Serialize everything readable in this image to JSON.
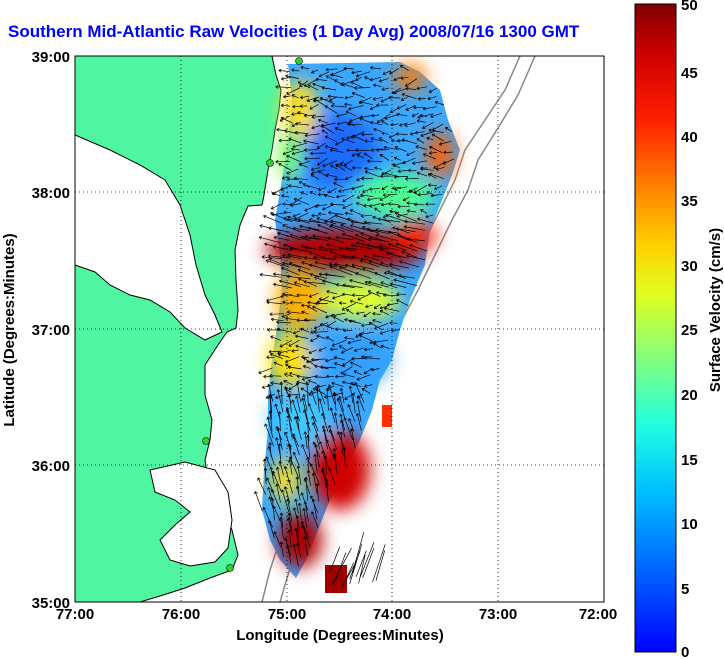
{
  "title": "Southern Mid-Atlantic Raw Velocities (1 Day Avg) 2008/07/16 1300 GMT",
  "x_axis": {
    "label": "Longitude (Degrees:Minutes)",
    "ticks": [
      "77:00",
      "76:00",
      "75:00",
      "74:00",
      "73:00",
      "72:00"
    ]
  },
  "y_axis": {
    "label": "Latitude (Degrees:Minutes)",
    "ticks": [
      "39:00",
      "38:00",
      "37:00",
      "36:00",
      "35:00"
    ]
  },
  "colorbar": {
    "label": "Surface Velocity (cm/s)",
    "ticks": [
      "50",
      "45",
      "40",
      "35",
      "30",
      "25",
      "20",
      "15",
      "10",
      "5",
      "0"
    ],
    "range": [
      0,
      50
    ]
  },
  "map_extent": {
    "lon": [
      -77,
      -72
    ],
    "lat": [
      35,
      39
    ]
  },
  "colors": {
    "land": "#4ff5a1",
    "title": "#0000ff",
    "grid": "#000000"
  }
}
